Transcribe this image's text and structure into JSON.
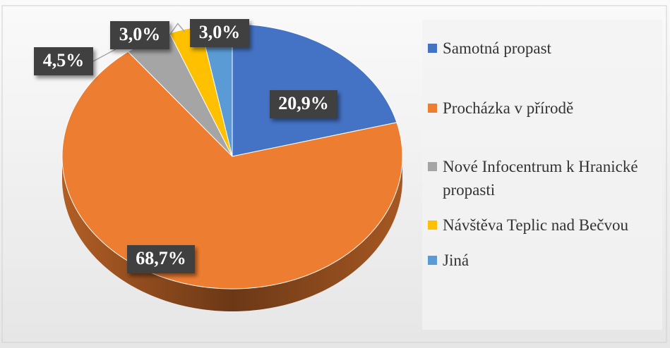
{
  "chart_data": {
    "type": "pie",
    "categories": [
      "Samotná propast",
      "Procházka v přírodě",
      "Nové Infocentrum k Hranické propasti",
      "Návštěva Teplic nad Bečvou",
      "Jiná"
    ],
    "values": [
      20.9,
      68.7,
      4.5,
      3.0,
      3.0
    ],
    "value_labels": [
      "20,9%",
      "68,7%",
      "4,5%",
      "3,0%",
      "3,0%"
    ],
    "colors": [
      "#4472c4",
      "#ed7d31",
      "#a5a5a5",
      "#ffc000",
      "#5b9bd5"
    ],
    "legend": "right"
  }
}
